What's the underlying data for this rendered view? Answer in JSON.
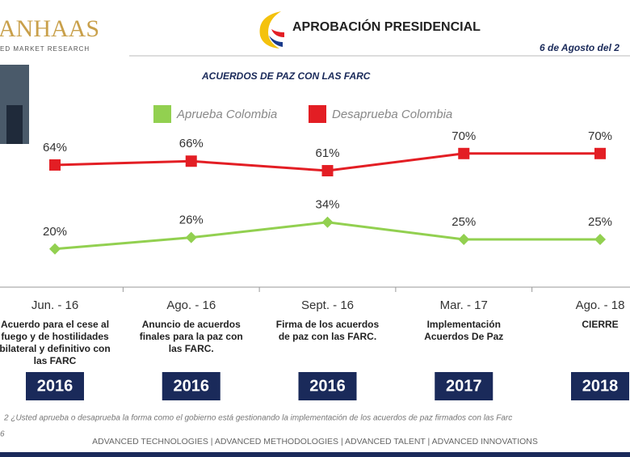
{
  "header": {
    "logo": "ANHAAS",
    "logo_tagline": "ED MARKET RESEARCH",
    "title": "APROBACIÓN PRESIDENCIAL",
    "date": "6 de Agosto del 2"
  },
  "chart_data": {
    "type": "line",
    "title": "ACUERDOS DE PAZ CON LAS FARC",
    "categories": [
      "Jun. - 16",
      "Ago. - 16",
      "Sept. - 16",
      "Mar. - 17",
      "Ago. - 18"
    ],
    "series": [
      {
        "name": "Aprueba Colombia",
        "color": "#92d050",
        "values": [
          20,
          26,
          34,
          25,
          25
        ],
        "value_labels": [
          "20%",
          "26%",
          "34%",
          "25%",
          "25%"
        ]
      },
      {
        "name": "Desaprueba Colombia",
        "color": "#e31e24",
        "values": [
          64,
          66,
          61,
          70,
          70
        ],
        "value_labels": [
          "64%",
          "66%",
          "61%",
          "70%",
          "70%"
        ]
      }
    ],
    "annotations": [
      [
        "Acuerdo para el cese al",
        "fuego y de hostilidades",
        "bilateral y definitivo con",
        "las FARC"
      ],
      [
        "Anuncio de acuerdos",
        "finales para la paz con",
        "las FARC."
      ],
      [
        "Firma de los acuerdos",
        "de paz con las FARC."
      ],
      [
        "Implementación",
        "Acuerdos De Paz"
      ],
      [
        "CIERRE"
      ]
    ],
    "years": [
      "2016",
      "2016",
      "2016",
      "2017",
      "2018"
    ]
  },
  "footer": {
    "note": "2 ¿Usted aprueba o desaprueba la forma como el gobierno está gestionando la implementación de los acuerdos de paz firmados con las Farc",
    "note_line2": "6",
    "tagline": "ADVANCED TECHNOLOGIES  |  ADVANCED METHODOLOGIES  |  ADVANCED TALENT  |  ADVANCED INNOVATIONS"
  }
}
